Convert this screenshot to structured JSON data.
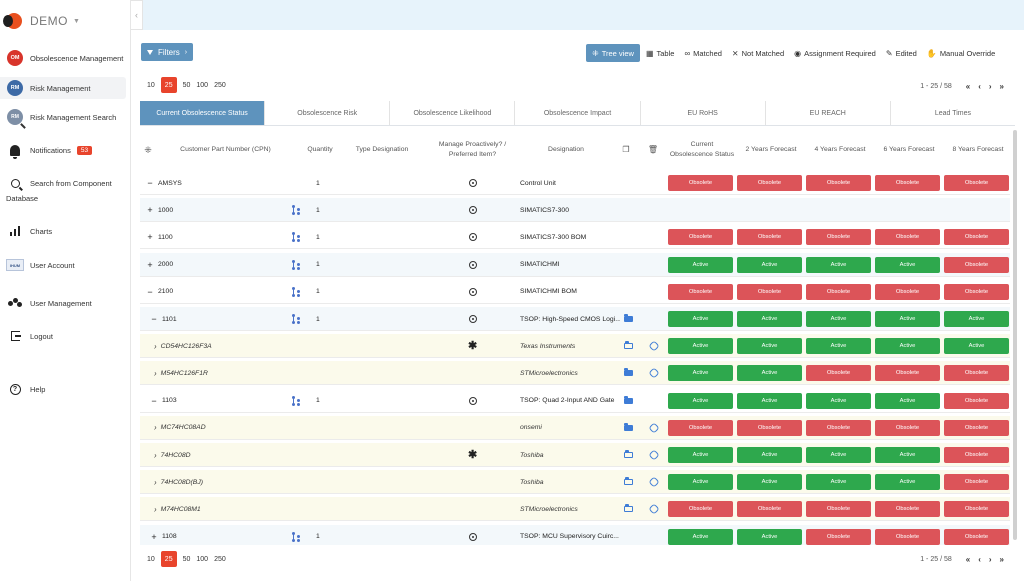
{
  "app": {
    "name": "DEMO",
    "collapse_glyph": "‹"
  },
  "sidebar": {
    "items": [
      {
        "label": "Obsolescence Management",
        "icon": "om-icon",
        "icon_text": "OM"
      },
      {
        "label": "Risk Management",
        "icon": "rm-icon",
        "icon_text": "RM",
        "active": true
      },
      {
        "label": "Risk Management Search",
        "icon": "rm-search-icon",
        "icon_text": "RM"
      },
      {
        "label": "Notifications",
        "icon": "bell-icon",
        "badge": "53"
      },
      {
        "label_line1": "Search from Component",
        "label_line2": "Database",
        "icon": "search-icon"
      },
      {
        "label": "Charts",
        "icon": "bar-chart-icon"
      },
      {
        "label": "User Account",
        "icon": "user-account-icon",
        "icon_text": "IHUM"
      },
      {
        "label": "User Management",
        "icon": "users-icon"
      },
      {
        "label": "Logout",
        "icon": "logout-icon"
      },
      {
        "label": "Help",
        "icon": "help-icon",
        "icon_text": "?"
      }
    ]
  },
  "toolbar": {
    "filters_label": "Filters",
    "view_tabs": [
      {
        "label": "Tree view",
        "icon": "tree-icon",
        "selected": true
      },
      {
        "label": "Table",
        "icon": "table-icon"
      },
      {
        "label": "Matched",
        "icon": "link-icon"
      },
      {
        "label": "Not Matched",
        "icon": "unlink-icon"
      },
      {
        "label": "Assignment Required",
        "icon": "user-circle-icon"
      },
      {
        "label": "Edited",
        "icon": "user-edit-icon"
      },
      {
        "label": "Manual Override",
        "icon": "hand-icon"
      }
    ]
  },
  "pagination": {
    "sizes": [
      "10",
      "25",
      "50",
      "100",
      "250"
    ],
    "selected": "25",
    "range_text": "1 - 25 / 58",
    "nav": [
      "«",
      "‹",
      "›",
      "»"
    ]
  },
  "tabs": [
    {
      "label": "Current Obsolescence Status",
      "active": true
    },
    {
      "label": "Obsolescence Risk"
    },
    {
      "label": "Obsolescence Likelihood"
    },
    {
      "label": "Obsolescence Impact"
    },
    {
      "label": "EU RoHS"
    },
    {
      "label": "EU REACH"
    },
    {
      "label": "Lead Times"
    }
  ],
  "table": {
    "headers": {
      "cpn": "Customer Part Number (CPN)",
      "quantity": "Quantity",
      "type": "Type Designation",
      "manage_line1": "Manage Proactively? /",
      "manage_line2": "Preferred Item?",
      "designation": "Designation",
      "current_line1": "Current",
      "current_line2": "Obsolescence Status",
      "f2": "2 Years Forecast",
      "f4": "4 Years Forecast",
      "f6": "6 Years Forecast",
      "f8": "8 Years Forecast"
    },
    "rows": [
      {
        "kind": "assembly",
        "toggle": "−",
        "indent": 0,
        "cpn": "AMSYS",
        "quantity": "1",
        "tree": false,
        "marker": "radio",
        "designation": "Control Unit",
        "folder": "",
        "link": false,
        "statuses": [
          "Obsolete",
          "Obsolete",
          "Obsolete",
          "Obsolete",
          "Obsolete"
        ]
      },
      {
        "kind": "assembly",
        "toggle": "+",
        "indent": 0,
        "cpn": "1000",
        "quantity": "1",
        "tree": true,
        "marker": "radio",
        "designation": "SIMATICS7-300",
        "folder": "",
        "link": false,
        "statuses": [],
        "alt": true
      },
      {
        "kind": "assembly",
        "toggle": "+",
        "indent": 0,
        "cpn": "1100",
        "quantity": "1",
        "tree": true,
        "marker": "radio",
        "designation": "SIMATICS7-300 BOM",
        "folder": "",
        "link": false,
        "statuses": [
          "Obsolete",
          "Obsolete",
          "Obsolete",
          "Obsolete",
          "Obsolete"
        ]
      },
      {
        "kind": "assembly",
        "toggle": "+",
        "indent": 0,
        "cpn": "2000",
        "quantity": "1",
        "tree": true,
        "marker": "radio",
        "designation": "SIMATICHMI",
        "folder": "",
        "link": false,
        "statuses": [
          "Active",
          "Active",
          "Active",
          "Active",
          "Obsolete"
        ],
        "alt": true
      },
      {
        "kind": "assembly",
        "toggle": "−",
        "indent": 0,
        "cpn": "2100",
        "quantity": "1",
        "tree": true,
        "marker": "radio",
        "designation": "SIMATICHMI BOM",
        "folder": "",
        "link": false,
        "statuses": [
          "Obsolete",
          "Obsolete",
          "Obsolete",
          "Obsolete",
          "Obsolete"
        ]
      },
      {
        "kind": "assembly",
        "toggle": "−",
        "indent": 1,
        "cpn": "1101",
        "quantity": "1",
        "tree": true,
        "marker": "radio",
        "designation": "TSOP: High-Speed CMOS Logi...",
        "folder": "filled",
        "link": false,
        "statuses": [
          "Active",
          "Active",
          "Active",
          "Active",
          "Active"
        ],
        "alt": true
      },
      {
        "kind": "part",
        "toggle": "›",
        "indent": 2,
        "cpn": "CD54HC126F3A",
        "quantity": "",
        "tree": false,
        "marker": "star",
        "designation": "Texas Instruments",
        "folder": "outline",
        "link": true,
        "statuses": [
          "Active",
          "Active",
          "Active",
          "Active",
          "Active"
        ]
      },
      {
        "kind": "part",
        "toggle": "›",
        "indent": 2,
        "cpn": "M54HC126F1R",
        "quantity": "",
        "tree": false,
        "marker": "",
        "designation": "STMicroelectronics",
        "folder": "filled",
        "link": true,
        "statuses": [
          "Active",
          "Active",
          "Obsolete",
          "Obsolete",
          "Obsolete"
        ]
      },
      {
        "kind": "assembly",
        "toggle": "−",
        "indent": 1,
        "cpn": "1103",
        "quantity": "1",
        "tree": true,
        "marker": "radio",
        "designation": "TSOP: Quad 2-Input AND Gate",
        "folder": "filled",
        "link": false,
        "statuses": [
          "Active",
          "Active",
          "Active",
          "Active",
          "Obsolete"
        ]
      },
      {
        "kind": "part",
        "toggle": "›",
        "indent": 2,
        "cpn": "MC74HC08AD",
        "quantity": "",
        "tree": false,
        "marker": "",
        "designation": "onsemi",
        "folder": "filled",
        "link": true,
        "statuses": [
          "Obsolete",
          "Obsolete",
          "Obsolete",
          "Obsolete",
          "Obsolete"
        ]
      },
      {
        "kind": "part",
        "toggle": "›",
        "indent": 2,
        "cpn": "74HC08D",
        "quantity": "",
        "tree": false,
        "marker": "star",
        "designation": "Toshiba",
        "folder": "outline",
        "link": true,
        "statuses": [
          "Active",
          "Active",
          "Active",
          "Active",
          "Obsolete"
        ]
      },
      {
        "kind": "part",
        "toggle": "›",
        "indent": 2,
        "cpn": "74HC08D(BJ)",
        "quantity": "",
        "tree": false,
        "marker": "",
        "designation": "Toshiba",
        "folder": "outline",
        "link": true,
        "statuses": [
          "Active",
          "Active",
          "Active",
          "Active",
          "Obsolete"
        ]
      },
      {
        "kind": "part",
        "toggle": "›",
        "indent": 2,
        "cpn": "M74HC08M1",
        "quantity": "",
        "tree": false,
        "marker": "",
        "designation": "STMicroelectronics",
        "folder": "outline",
        "link": true,
        "statuses": [
          "Obsolete",
          "Obsolete",
          "Obsolete",
          "Obsolete",
          "Obsolete"
        ]
      },
      {
        "kind": "assembly",
        "toggle": "+",
        "indent": 1,
        "cpn": "1108",
        "quantity": "1",
        "tree": true,
        "marker": "radio",
        "designation": "TSOP: MCU Supervisory Cuirc...",
        "folder": "",
        "link": false,
        "statuses": [
          "Active",
          "Active",
          "Obsolete",
          "Obsolete",
          "Obsolete"
        ],
        "alt": true
      }
    ]
  },
  "colors": {
    "accent": "#5e93bd",
    "obsolete": "#dc5459",
    "active": "#2ea84d",
    "page_size_selected": "#e8442c",
    "part_row_bg": "#fbfaeb"
  }
}
